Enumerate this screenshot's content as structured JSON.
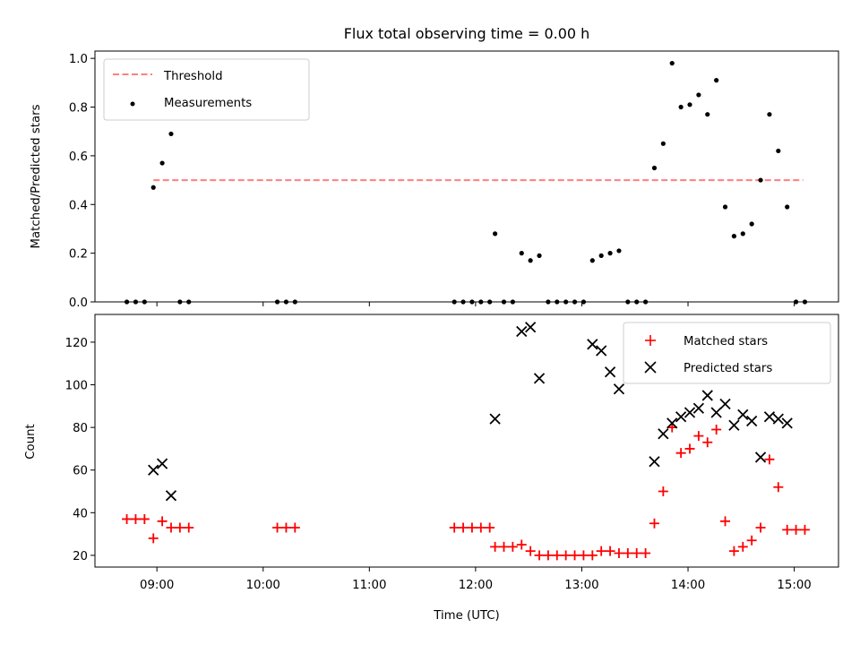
{
  "chart_data": [
    {
      "type": "scatter",
      "title": "Flux total observing time = 0.00 h",
      "xlabel": "",
      "ylabel": "Matched/Predicted stars",
      "xlim": [
        "08:25",
        "15:25"
      ],
      "ylim": [
        0,
        1.03
      ],
      "x_ticks": [
        "09:00",
        "10:00",
        "11:00",
        "12:00",
        "13:00",
        "14:00",
        "15:00"
      ],
      "y_ticks": [
        "0.0",
        "0.2",
        "0.4",
        "0.6",
        "0.8",
        "1.0"
      ],
      "y_tick_values": [
        0,
        0.2,
        0.4,
        0.6,
        0.8,
        1.0
      ],
      "grid": false,
      "legend_position": "top-left",
      "series": [
        {
          "name": "Threshold",
          "style": "dashed-line",
          "color": "#ff7f7f",
          "points": [
            [
              "08:58",
              0.5
            ],
            [
              "15:05",
              0.5
            ]
          ]
        },
        {
          "name": "Measurements",
          "style": "dot",
          "color": "#000000",
          "points": [
            [
              "08:43",
              0.0
            ],
            [
              "08:48",
              0.0
            ],
            [
              "08:53",
              0.0
            ],
            [
              "08:58",
              0.47
            ],
            [
              "09:03",
              0.57
            ],
            [
              "09:08",
              0.69
            ],
            [
              "09:13",
              0.0
            ],
            [
              "09:18",
              0.0
            ],
            [
              "10:08",
              0.0
            ],
            [
              "10:13",
              0.0
            ],
            [
              "10:18",
              0.0
            ],
            [
              "11:48",
              0.0
            ],
            [
              "11:53",
              0.0
            ],
            [
              "11:58",
              0.0
            ],
            [
              "12:03",
              0.0
            ],
            [
              "12:08",
              0.0
            ],
            [
              "12:11",
              0.28
            ],
            [
              "12:16",
              0.0
            ],
            [
              "12:21",
              0.0
            ],
            [
              "12:26",
              0.2
            ],
            [
              "12:31",
              0.17
            ],
            [
              "12:36",
              0.19
            ],
            [
              "12:41",
              0.0
            ],
            [
              "12:46",
              0.0
            ],
            [
              "12:51",
              0.0
            ],
            [
              "12:56",
              0.0
            ],
            [
              "13:01",
              0.0
            ],
            [
              "13:06",
              0.17
            ],
            [
              "13:11",
              0.19
            ],
            [
              "13:16",
              0.2
            ],
            [
              "13:21",
              0.21
            ],
            [
              "13:26",
              0.0
            ],
            [
              "13:31",
              0.0
            ],
            [
              "13:36",
              0.0
            ],
            [
              "13:41",
              0.55
            ],
            [
              "13:46",
              0.65
            ],
            [
              "13:51",
              0.98
            ],
            [
              "13:56",
              0.8
            ],
            [
              "14:01",
              0.81
            ],
            [
              "14:06",
              0.85
            ],
            [
              "14:11",
              0.77
            ],
            [
              "14:16",
              0.91
            ],
            [
              "14:21",
              0.39
            ],
            [
              "14:26",
              0.27
            ],
            [
              "14:31",
              0.28
            ],
            [
              "14:36",
              0.32
            ],
            [
              "14:41",
              0.5
            ],
            [
              "14:46",
              0.77
            ],
            [
              "14:51",
              0.62
            ],
            [
              "14:56",
              0.39
            ],
            [
              "15:01",
              0.0
            ],
            [
              "15:06",
              0.0
            ]
          ]
        }
      ]
    },
    {
      "type": "scatter",
      "title": "",
      "xlabel": "Time (UTC)",
      "ylabel": "Count",
      "xlim": [
        "08:25",
        "15:25"
      ],
      "ylim": [
        14.5,
        133
      ],
      "x_ticks": [
        "09:00",
        "10:00",
        "11:00",
        "12:00",
        "13:00",
        "14:00",
        "15:00"
      ],
      "y_ticks": [
        "20",
        "40",
        "60",
        "80",
        "100",
        "120"
      ],
      "y_tick_values": [
        20,
        40,
        60,
        80,
        100,
        120
      ],
      "grid": false,
      "legend_position": "top-right",
      "series": [
        {
          "name": "Matched stars",
          "style": "plus",
          "color": "#ff0000",
          "points": [
            [
              "08:43",
              37
            ],
            [
              "08:48",
              37
            ],
            [
              "08:53",
              37
            ],
            [
              "08:58",
              28
            ],
            [
              "09:03",
              36
            ],
            [
              "09:08",
              33
            ],
            [
              "09:13",
              33
            ],
            [
              "09:18",
              33
            ],
            [
              "10:08",
              33
            ],
            [
              "10:13",
              33
            ],
            [
              "10:18",
              33
            ],
            [
              "11:48",
              33
            ],
            [
              "11:53",
              33
            ],
            [
              "11:58",
              33
            ],
            [
              "12:03",
              33
            ],
            [
              "12:08",
              33
            ],
            [
              "12:11",
              24
            ],
            [
              "12:16",
              24
            ],
            [
              "12:21",
              24
            ],
            [
              "12:26",
              25
            ],
            [
              "12:31",
              22
            ],
            [
              "12:36",
              20
            ],
            [
              "12:41",
              20
            ],
            [
              "12:46",
              20
            ],
            [
              "12:51",
              20
            ],
            [
              "12:56",
              20
            ],
            [
              "13:01",
              20
            ],
            [
              "13:06",
              20
            ],
            [
              "13:11",
              22
            ],
            [
              "13:16",
              22
            ],
            [
              "13:21",
              21
            ],
            [
              "13:26",
              21
            ],
            [
              "13:31",
              21
            ],
            [
              "13:36",
              21
            ],
            [
              "13:41",
              35
            ],
            [
              "13:46",
              50
            ],
            [
              "13:51",
              80
            ],
            [
              "13:56",
              68
            ],
            [
              "14:01",
              70
            ],
            [
              "14:06",
              76
            ],
            [
              "14:11",
              73
            ],
            [
              "14:16",
              79
            ],
            [
              "14:21",
              36
            ],
            [
              "14:26",
              22
            ],
            [
              "14:31",
              24
            ],
            [
              "14:36",
              27
            ],
            [
              "14:41",
              33
            ],
            [
              "14:46",
              65
            ],
            [
              "14:51",
              52
            ],
            [
              "14:56",
              32
            ],
            [
              "15:01",
              32
            ],
            [
              "15:06",
              32
            ]
          ]
        },
        {
          "name": "Predicted stars",
          "style": "x",
          "color": "#000000",
          "points": [
            [
              "08:58",
              60
            ],
            [
              "09:03",
              63
            ],
            [
              "09:08",
              48
            ],
            [
              "12:11",
              84
            ],
            [
              "12:26",
              125
            ],
            [
              "12:31",
              127
            ],
            [
              "12:36",
              103
            ],
            [
              "13:06",
              119
            ],
            [
              "13:11",
              116
            ],
            [
              "13:16",
              106
            ],
            [
              "13:21",
              98
            ],
            [
              "13:41",
              64
            ],
            [
              "13:46",
              77
            ],
            [
              "13:51",
              82
            ],
            [
              "13:56",
              85
            ],
            [
              "14:01",
              87
            ],
            [
              "14:06",
              89
            ],
            [
              "14:11",
              95
            ],
            [
              "14:16",
              87
            ],
            [
              "14:21",
              91
            ],
            [
              "14:26",
              81
            ],
            [
              "14:31",
              86
            ],
            [
              "14:36",
              83
            ],
            [
              "14:41",
              66
            ],
            [
              "14:46",
              85
            ],
            [
              "14:51",
              84
            ],
            [
              "14:56",
              82
            ]
          ]
        }
      ]
    }
  ]
}
